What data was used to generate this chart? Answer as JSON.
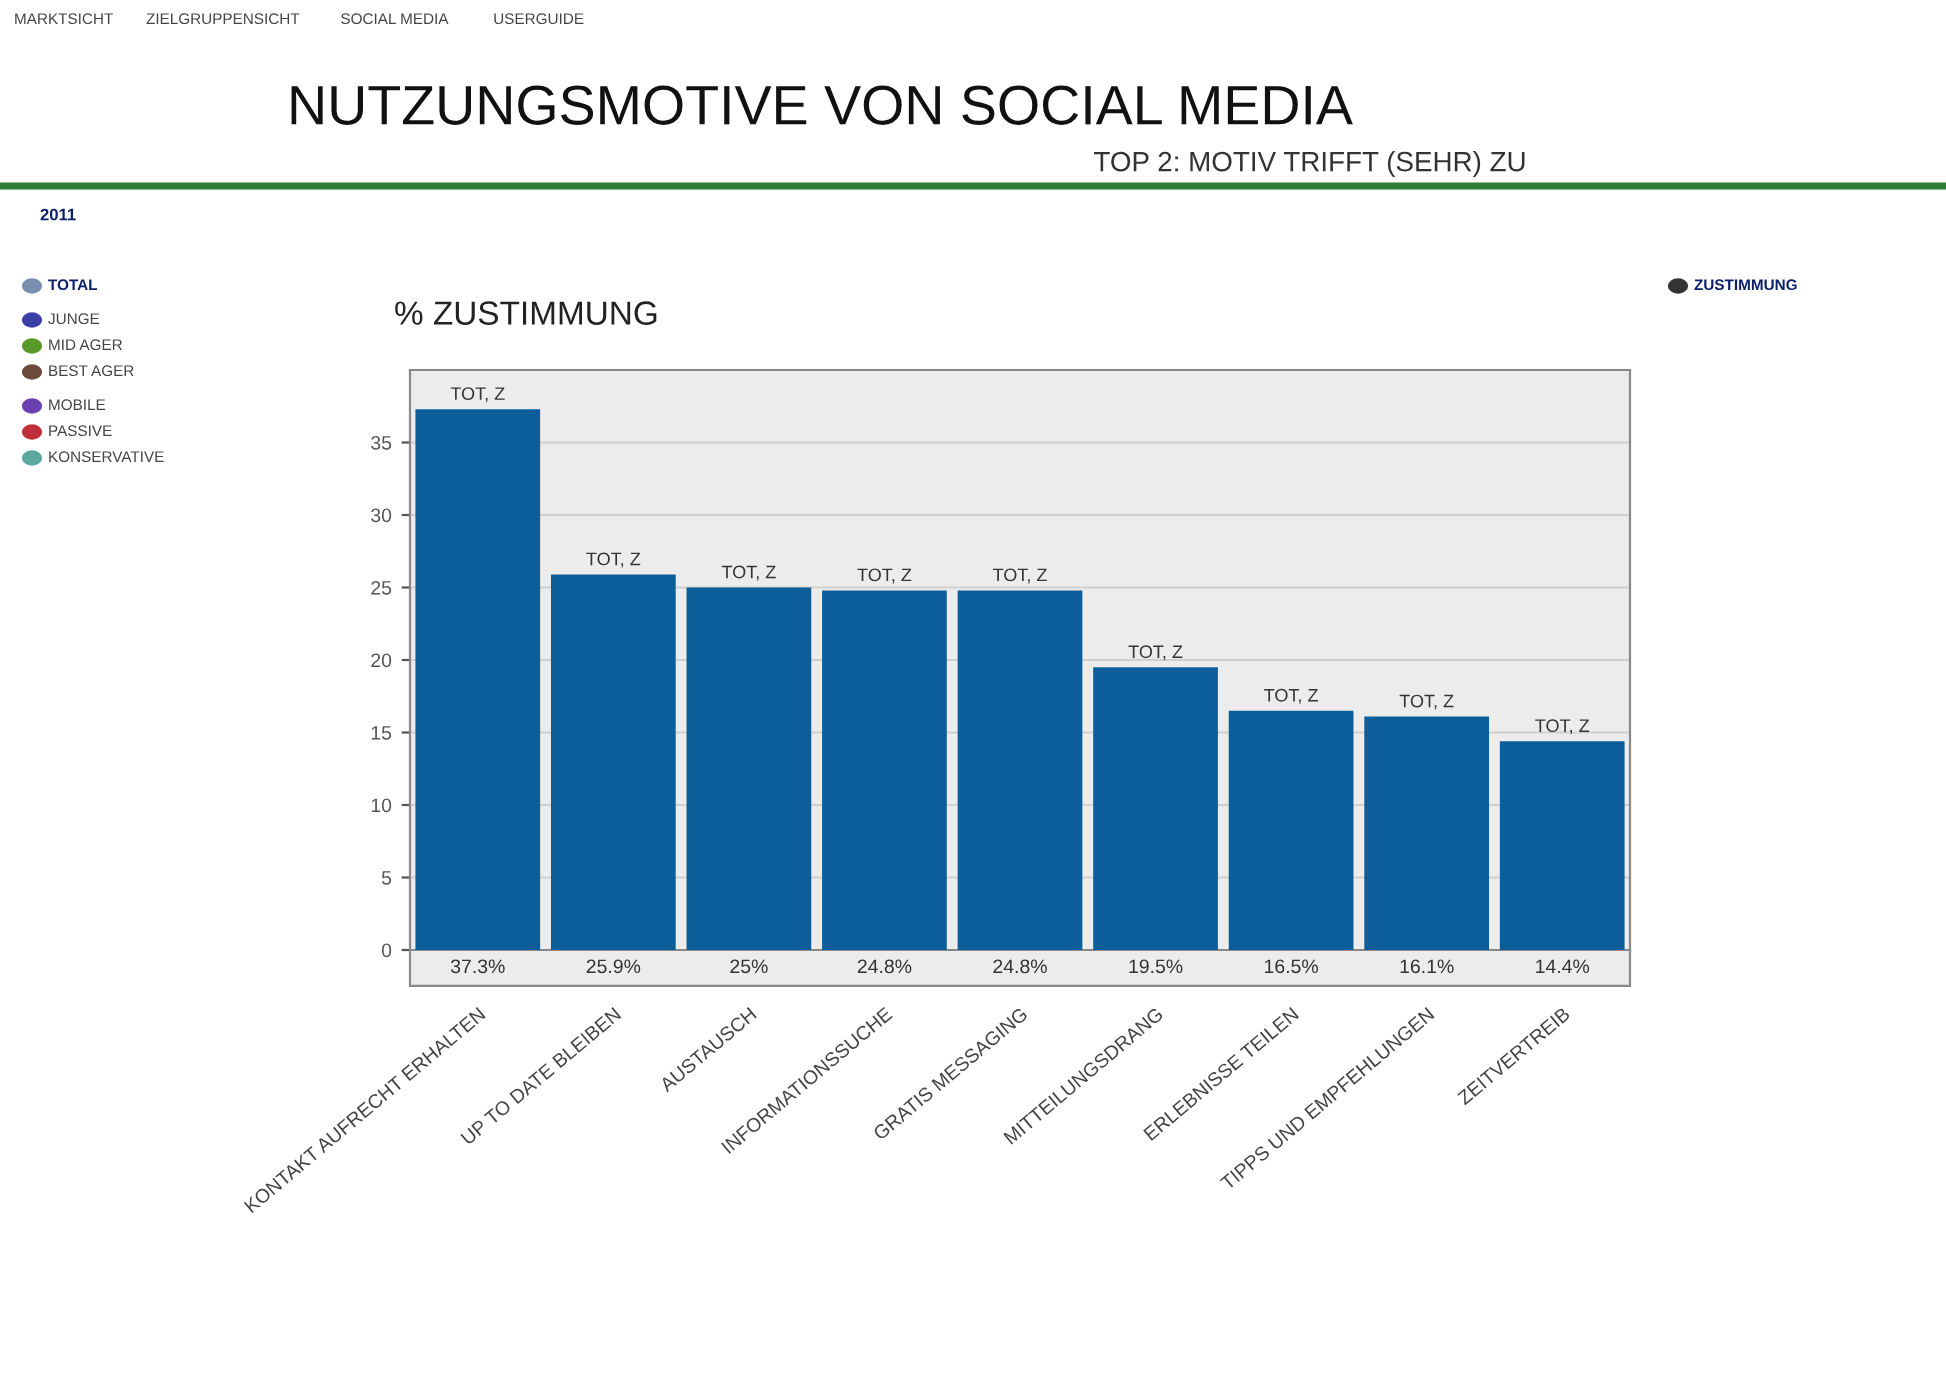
{
  "chart_data": [
    {
      "type": "bar",
      "title": "NUTZUNGSMOTIVE VON SOCIAL MEDIA",
      "subtitle": "TOP 2: MOTIV TRIFFT (SEHR) ZU",
      "ylabel": "% ZUSTIMMUNG",
      "categories": [
        "KONTAKT AUFRECHT ERHALTEN",
        "UP TO DATE BLEIBEN",
        "AUSTAUSCH",
        "INFORMATIONSSUCHE",
        "GRATIS MESSAGING",
        "MITTEILUNGSDRANG",
        "ERLEBNISSE TEILEN",
        "TIPPS UND EMPFEHLUNGEN",
        "ZEITVERTREIB"
      ],
      "values": [
        37.3,
        25.9,
        25,
        24.8,
        24.8,
        19.5,
        16.5,
        16.1,
        14.4
      ],
      "value_labels": [
        "37.3%",
        "25.9%",
        "25%",
        "24.8%",
        "24.8%",
        "19.5%",
        "16.5%",
        "16.1%",
        "14.4%"
      ],
      "color": "#0b5e99",
      "ylim": [
        0,
        40
      ],
      "yticks": [
        0,
        5,
        10,
        15,
        20,
        25,
        30,
        35
      ],
      "grid": "y",
      "annotations": [
        {
          "text": "TOT, Z",
          "x": "KONTAKT AUFRECHT ERHALTEN",
          "y": 37.3
        },
        {
          "text": "TOT, Z",
          "x": "UP TO DATE BLEIBEN",
          "y": 25.9
        },
        {
          "text": "TOT, Z",
          "x": "AUSTAUSCH",
          "y": 25
        },
        {
          "text": "TOT, Z",
          "x": "INFORMATIONSSUCHE",
          "y": 24.8
        },
        {
          "text": "TOT, Z",
          "x": "GRATIS MESSAGING",
          "y": 24.8
        },
        {
          "text": "TOT, Z",
          "x": "MITTEILUNGSDRANG",
          "y": 19.5
        },
        {
          "text": "TOT, Z",
          "x": "ERLEBNISSE TEILEN",
          "y": 16.5
        },
        {
          "text": "TOT, Z",
          "x": "TIPPS UND EMPFEHLUNGEN",
          "y": 16.1
        },
        {
          "text": "TOT, Z",
          "x": "ZEITVERTREIB",
          "y": 14.4
        }
      ]
    },
    {
      "type": "other",
      "annotations": [
        "MARKTSICHT",
        "ZIELGRUPPENSICHT",
        "SOCIAL MEDIA",
        "USERGUIDE"
      ]
    },
    {
      "type": "other",
      "annotations": [
        "2011"
      ]
    },
    {
      "type": "other",
      "annotations": [
        "TOTAL",
        "JUNGE",
        "MID AGER",
        "BEST AGER",
        "MOBILE",
        "PASSIVE",
        "KONSERVATIVE"
      ],
      "colors": [
        "#7a8fb0",
        "#3b3fa8",
        "#5a9a2a",
        "#6b4a3a",
        "#6a3fb0",
        "#c0303a",
        "#5aa8a0"
      ]
    },
    {
      "type": "other",
      "annotations": [
        "ZUSTIMMUNG"
      ],
      "colors": [
        "#333333"
      ]
    }
  ]
}
